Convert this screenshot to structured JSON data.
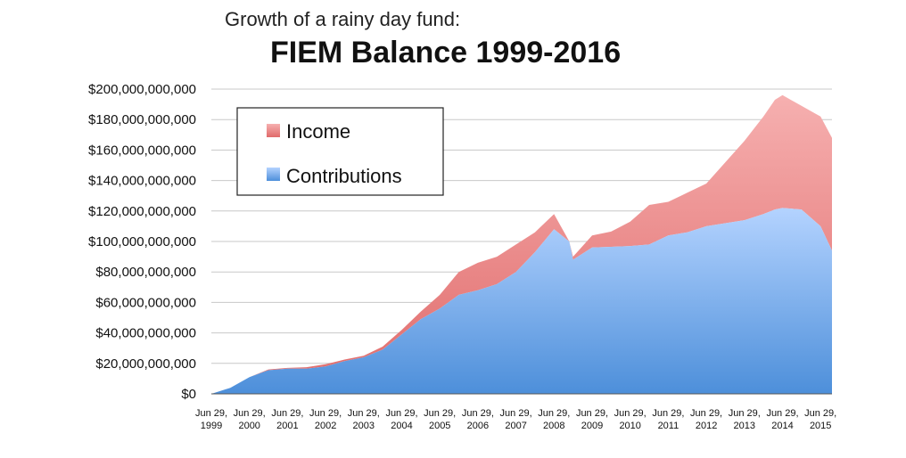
{
  "chart_data": {
    "type": "area",
    "subtitle": "Growth of a rainy day fund:",
    "title": "FIEM Balance 1999-2016",
    "xlabel": "",
    "ylabel": "",
    "ylim": [
      0,
      200000000000
    ],
    "y_ticks": [
      "$0",
      "$20,000,000,000",
      "$40,000,000,000",
      "$60,000,000,000",
      "$80,000,000,000",
      "$100,000,000,000",
      "$120,000,000,000",
      "$140,000,000,000",
      "$160,000,000,000",
      "$180,000,000,000",
      "$200,000,000,000"
    ],
    "x_ticks": [
      {
        "line1": "Jun 29,",
        "line2": "1999"
      },
      {
        "line1": "Jun 29,",
        "line2": "2000"
      },
      {
        "line1": "Jun 29,",
        "line2": "2001"
      },
      {
        "line1": "Jun 29,",
        "line2": "2002"
      },
      {
        "line1": "Jun 29,",
        "line2": "2003"
      },
      {
        "line1": "Jun 29,",
        "line2": "2004"
      },
      {
        "line1": "Jun 29,",
        "line2": "2005"
      },
      {
        "line1": "Jun 29,",
        "line2": "2006"
      },
      {
        "line1": "Jun 29,",
        "line2": "2007"
      },
      {
        "line1": "Jun 29,",
        "line2": "2008"
      },
      {
        "line1": "Jun 29,",
        "line2": "2009"
      },
      {
        "line1": "Jun 29,",
        "line2": "2010"
      },
      {
        "line1": "Jun 29,",
        "line2": "2011"
      },
      {
        "line1": "Jun 29,",
        "line2": "2012"
      },
      {
        "line1": "Jun 29,",
        "line2": "2013"
      },
      {
        "line1": "Jun 29,",
        "line2": "2014"
      },
      {
        "line1": "Jun 29,",
        "line2": "2015"
      }
    ],
    "stacked": true,
    "grid": true,
    "legend_position": "top-left",
    "x": [
      1999.5,
      2000.0,
      2000.5,
      2001.0,
      2001.5,
      2002.0,
      2002.5,
      2003.0,
      2003.5,
      2004.0,
      2004.5,
      2005.0,
      2005.5,
      2006.0,
      2006.5,
      2007.0,
      2007.5,
      2008.0,
      2008.5,
      2008.9,
      2009.0,
      2009.5,
      2010.0,
      2010.5,
      2011.0,
      2011.5,
      2012.0,
      2012.5,
      2013.0,
      2013.5,
      2014.0,
      2014.3,
      2014.5,
      2015.0,
      2015.5,
      2015.8
    ],
    "series": [
      {
        "name": "Contributions",
        "color": "#5b9be0",
        "values": [
          0,
          4000000000,
          11000000000,
          15500000000,
          16500000000,
          16500000000,
          18000000000,
          21500000000,
          24000000000,
          29000000000,
          39000000000,
          49000000000,
          56000000000,
          65000000000,
          68000000000,
          72000000000,
          80000000000,
          93000000000,
          108000000000,
          100000000000,
          88000000000,
          96000000000,
          96500000000,
          97000000000,
          98000000000,
          104000000000,
          106000000000,
          110000000000,
          112000000000,
          114000000000,
          118000000000,
          121000000000,
          122000000000,
          121000000000,
          110000000000,
          94000000000
        ]
      },
      {
        "name": "Income",
        "color": "#ea8585",
        "values": [
          0,
          0,
          0,
          500000000,
          500000000,
          1000000000,
          1500000000,
          1000000000,
          1000000000,
          2000000000,
          3000000000,
          5000000000,
          9000000000,
          15000000000,
          18000000000,
          18000000000,
          18000000000,
          13000000000,
          10000000000,
          0,
          2000000000,
          8000000000,
          10000000000,
          16000000000,
          26000000000,
          22000000000,
          26000000000,
          28000000000,
          40000000000,
          52000000000,
          64000000000,
          72000000000,
          74000000000,
          68000000000,
          72000000000,
          74000000000
        ]
      }
    ],
    "legend": [
      {
        "label": "Income",
        "color": "#ea8585"
      },
      {
        "label": "Contributions",
        "color": "#5b9be0"
      }
    ]
  }
}
